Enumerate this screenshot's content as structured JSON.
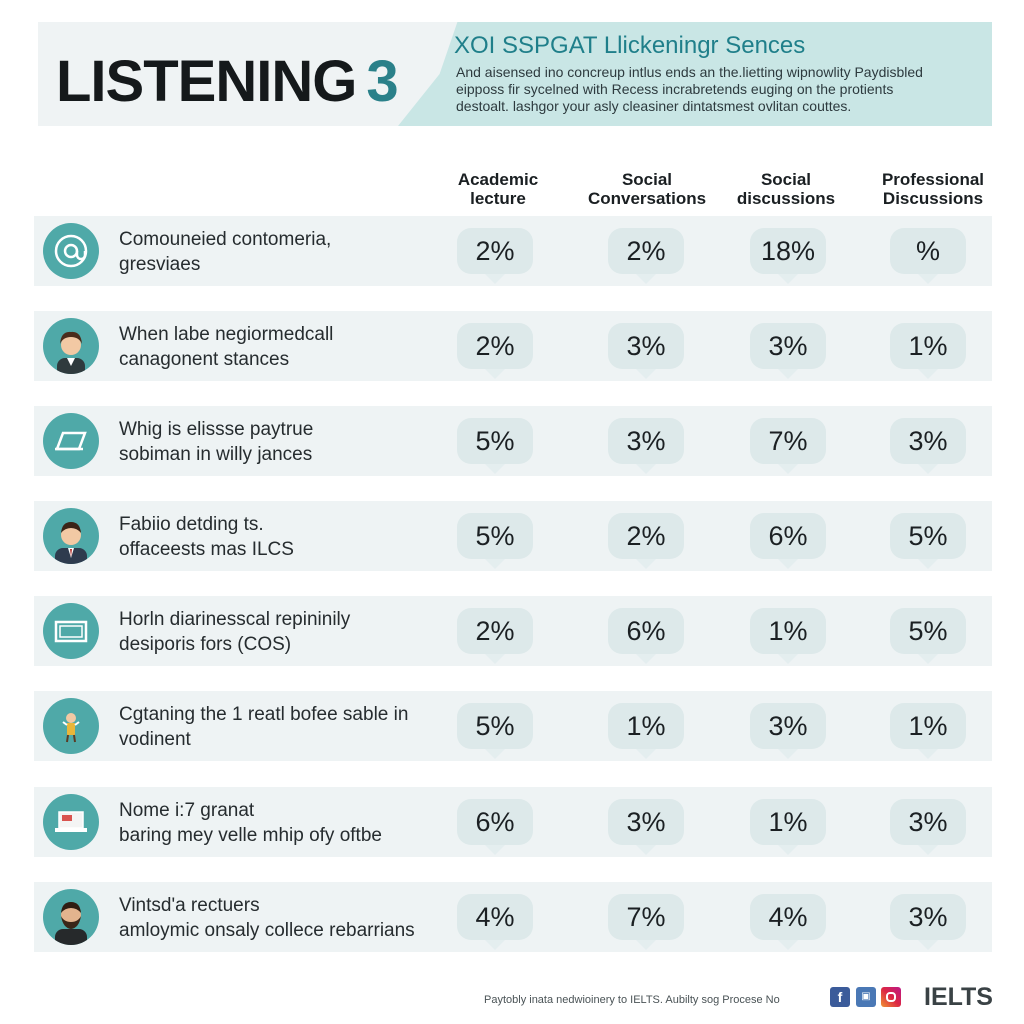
{
  "header": {
    "title": "LISTENING",
    "title_number": "3",
    "subtitle": "XOI SSPGAT Llickeningr Sences",
    "description_lines": [
      "And aisensed ino concreup intlus ends an the.lietting wipnowlity Paydisbled",
      "eipposs fir sycelned with Recess incrabretends euging on the protients",
      "destoalt. lashgor your asly cleasiner dintatsmest ovlitan couttes."
    ]
  },
  "columns": [
    {
      "line1": "Academic",
      "line2": "lecture"
    },
    {
      "line1": "Social",
      "line2": "Conversations"
    },
    {
      "line1": "Social",
      "line2": "discussions"
    },
    {
      "line1": "Professional",
      "line2": "Discussions"
    }
  ],
  "rows": [
    {
      "icon": "at-sign-icon",
      "line1": "Comouneied contomeria,",
      "line2": "gresviaes",
      "values": [
        "2%",
        "2%",
        "18%",
        "%"
      ]
    },
    {
      "icon": "person-avatar-icon",
      "line1": "When labe negiormedcall",
      "line2": "canagonent stances",
      "values": [
        "2%",
        "3%",
        "3%",
        "1%"
      ]
    },
    {
      "icon": "document-icon",
      "line1": "Whig is elissse paytrue",
      "line2": "sobiman in willy jances",
      "values": [
        "5%",
        "3%",
        "7%",
        "3%"
      ]
    },
    {
      "icon": "businessman-avatar-icon",
      "line1": "Fabiio detding ts.",
      "line2": "offaceests mas ILCS",
      "values": [
        "5%",
        "2%",
        "6%",
        "5%"
      ]
    },
    {
      "icon": "card-icon",
      "line1": "Horln diarinesscal repininily",
      "line2": "desiporis fors (COS)",
      "values": [
        "2%",
        "6%",
        "1%",
        "5%"
      ]
    },
    {
      "icon": "figure-icon",
      "line1": "Cgtaning the 1 reatl bofee sable in",
      "line2": "vodinent",
      "values": [
        "5%",
        "1%",
        "3%",
        "1%"
      ]
    },
    {
      "icon": "laptop-icon",
      "line1": "Nome i:7 granat",
      "line2": "baring mey velle mhip ofy oftbe",
      "values": [
        "6%",
        "3%",
        "1%",
        "3%"
      ]
    },
    {
      "icon": "bearded-man-avatar-icon",
      "line1": "Vintsd'a rectuers",
      "line2": "amloymic onsaly collece rebarrians",
      "values": [
        "4%",
        "7%",
        "4%",
        "3%"
      ]
    }
  ],
  "footer": {
    "note": "Paytobly inata nedwioinery to IELTS. Aubilty sog Procese No",
    "brand": "IELTS",
    "social_icons": [
      "facebook-icon",
      "twitter-icon",
      "instagram-icon"
    ]
  },
  "colors": {
    "accent": "#2a8089",
    "header_band": "#c9e6e5",
    "row_background": "#eef3f4",
    "avatar_background": "#4fa9a8",
    "cell_background": "#dde9ea"
  }
}
